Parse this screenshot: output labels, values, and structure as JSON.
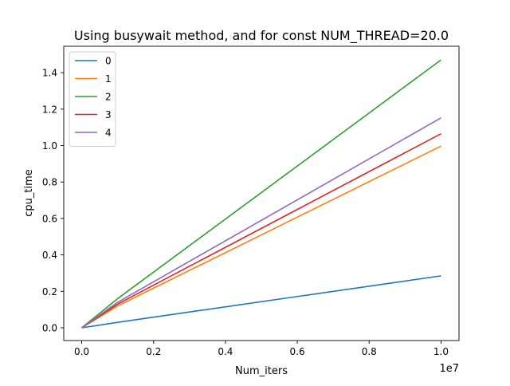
{
  "chart_data": {
    "type": "line",
    "title": "Using busywait method, and for const NUM_THREAD=20.0",
    "xlabel": "Num_iters",
    "ylabel": "cpu_time",
    "x_offset_text": "1e7",
    "xlim": [
      -0.05,
      1.05
    ],
    "ylim": [
      -0.07,
      1.545
    ],
    "xticks": [
      0.0,
      0.2,
      0.4,
      0.6,
      0.8,
      1.0
    ],
    "xtick_labels": [
      "0.0",
      "0.2",
      "0.4",
      "0.6",
      "0.8",
      "1.0"
    ],
    "yticks": [
      0.0,
      0.2,
      0.4,
      0.6,
      0.8,
      1.0,
      1.2,
      1.4
    ],
    "ytick_labels": [
      "0.0",
      "0.2",
      "0.4",
      "0.6",
      "0.8",
      "1.0",
      "1.2",
      "1.4"
    ],
    "grid": false,
    "legend_position": "top-left",
    "x": [
      0.0,
      0.1,
      1.0
    ],
    "series": [
      {
        "name": "0",
        "color": "#1f77b4",
        "values": [
          0.0,
          0.03,
          0.285
        ]
      },
      {
        "name": "1",
        "color": "#ff7f0e",
        "values": [
          0.0,
          0.12,
          0.997
        ]
      },
      {
        "name": "2",
        "color": "#2ca02c",
        "values": [
          0.0,
          0.16,
          1.47
        ]
      },
      {
        "name": "3",
        "color": "#d62728",
        "values": [
          0.0,
          0.13,
          1.065
        ]
      },
      {
        "name": "4",
        "color": "#9467bd",
        "values": [
          0.0,
          0.14,
          1.152
        ]
      }
    ]
  }
}
